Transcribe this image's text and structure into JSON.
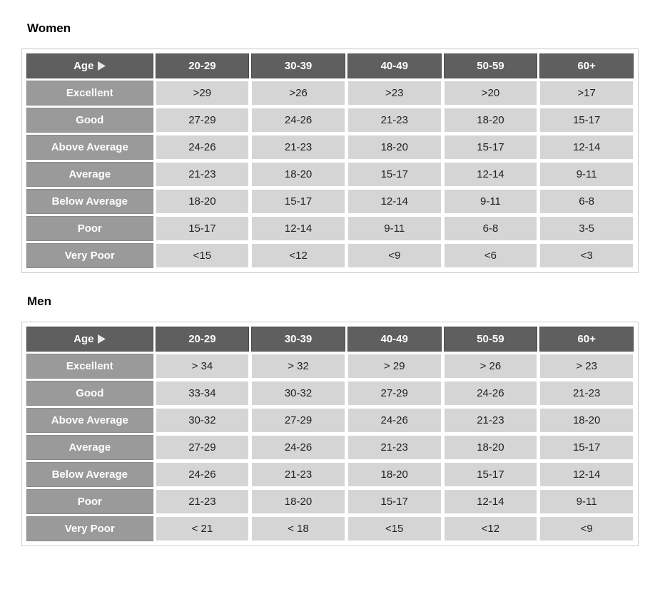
{
  "colors": {
    "header_dark_bg": "#5f5f5f",
    "header_dark_border": "#4a4a4a",
    "rowhead_bg": "#9a9a9a",
    "rowhead_border": "#8a8a8a",
    "data_bg": "#d5d5d5",
    "page_bg": "#ffffff",
    "text_light": "#ffffff",
    "text_dark": "#222222",
    "title_text": "#000000",
    "wrapper_border": "#cccccc"
  },
  "age_label": "Age",
  "age_headers": [
    "20-29",
    "30-39",
    "40-49",
    "50-59",
    "60+"
  ],
  "row_labels": [
    "Excellent",
    "Good",
    "Above Average",
    "Average",
    "Below Average",
    "Poor",
    "Very Poor"
  ],
  "tables": [
    {
      "title": "Women",
      "rows": [
        [
          ">29",
          ">26",
          ">23",
          ">20",
          ">17"
        ],
        [
          "27-29",
          "24-26",
          "21-23",
          "18-20",
          "15-17"
        ],
        [
          "24-26",
          "21-23",
          "18-20",
          "15-17",
          "12-14"
        ],
        [
          "21-23",
          "18-20",
          "15-17",
          "12-14",
          "9-11"
        ],
        [
          "18-20",
          "15-17",
          "12-14",
          "9-11",
          "6-8"
        ],
        [
          "15-17",
          "12-14",
          "9-11",
          "6-8",
          "3-5"
        ],
        [
          "<15",
          "<12",
          "<9",
          "<6",
          "<3"
        ]
      ]
    },
    {
      "title": "Men",
      "rows": [
        [
          "> 34",
          "> 32",
          "> 29",
          "> 26",
          "> 23"
        ],
        [
          "33-34",
          "30-32",
          "27-29",
          "24-26",
          "21-23"
        ],
        [
          "30-32",
          "27-29",
          "24-26",
          "21-23",
          "18-20"
        ],
        [
          "27-29",
          "24-26",
          "21-23",
          "18-20",
          "15-17"
        ],
        [
          "24-26",
          "21-23",
          "18-20",
          "15-17",
          "12-14"
        ],
        [
          "21-23",
          "18-20",
          "15-17",
          "12-14",
          "9-11"
        ],
        [
          "< 21",
          "< 18",
          "<15",
          "<12",
          "<9"
        ]
      ]
    }
  ]
}
